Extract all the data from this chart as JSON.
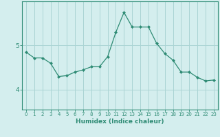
{
  "xlabel": "Humidex (Indice chaleur)",
  "ylabel": "",
  "x_values": [
    0,
    1,
    2,
    3,
    4,
    5,
    6,
    7,
    8,
    9,
    10,
    11,
    12,
    13,
    14,
    15,
    16,
    17,
    18,
    19,
    20,
    21,
    22,
    23
  ],
  "y_values": [
    4.85,
    4.72,
    4.72,
    4.6,
    4.3,
    4.32,
    4.4,
    4.45,
    4.52,
    4.52,
    4.75,
    5.3,
    5.75,
    5.42,
    5.42,
    5.42,
    5.05,
    4.82,
    4.67,
    4.4,
    4.4,
    4.28,
    4.2,
    4.22
  ],
  "line_color": "#2e8b74",
  "marker": "D",
  "marker_size": 2.0,
  "bg_color": "#d4eeee",
  "grid_color": "#aad4d4",
  "axis_color": "#2e8b74",
  "ylim": [
    3.55,
    6.0
  ],
  "xlim": [
    -0.5,
    23.5
  ],
  "yticks": [
    4,
    5
  ],
  "ytick_labels": [
    "4",
    "5"
  ],
  "xtick_labels": [
    "0",
    "1",
    "2",
    "3",
    "4",
    "5",
    "6",
    "7",
    "8",
    "9",
    "10",
    "11",
    "12",
    "13",
    "14",
    "15",
    "16",
    "17",
    "18",
    "19",
    "20",
    "21",
    "22",
    "23"
  ],
  "xlabel_fontsize": 6.5,
  "ytick_fontsize": 6.5,
  "xtick_fontsize": 5.0
}
